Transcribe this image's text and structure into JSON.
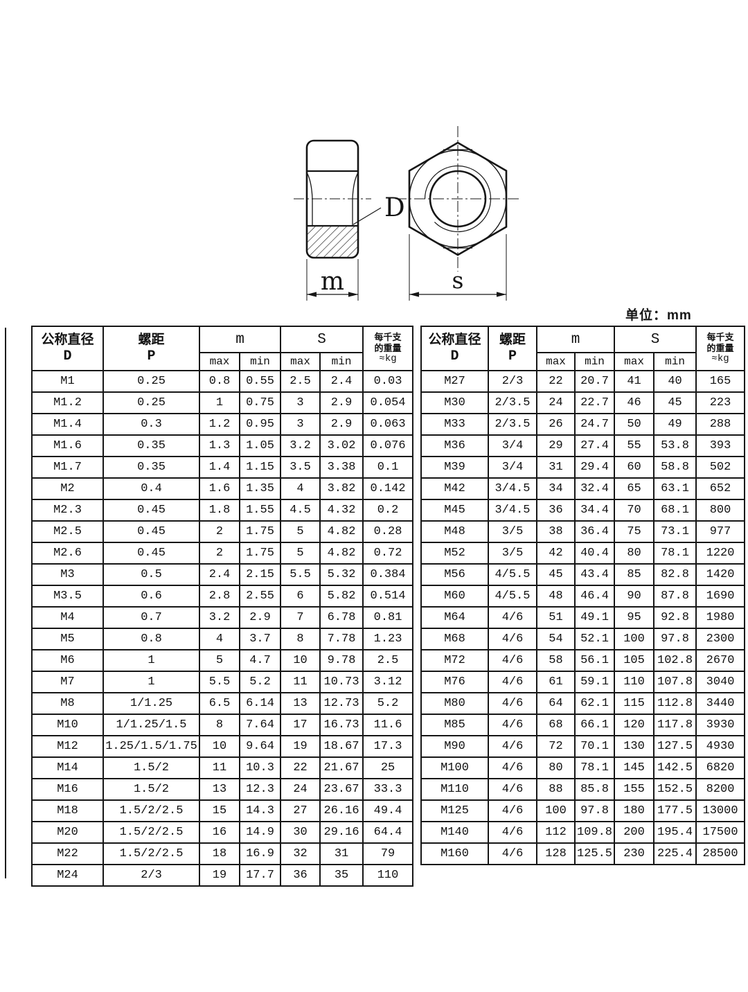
{
  "unit_label": "单位：mm",
  "drawing": {
    "bore_label": "D",
    "thickness_label": "m",
    "width_label": "s"
  },
  "table": {
    "header": {
      "diameter_line1": "公称直径",
      "diameter_line2": "D",
      "pitch_line1": "螺距",
      "pitch_line2": "P",
      "m_group": "m",
      "s_group": "S",
      "max": "max",
      "min": "min",
      "weight_line1": "每千支",
      "weight_line2": "的重量",
      "weight_line3": "≈kg"
    },
    "left_rows": [
      [
        "M1",
        "0.25",
        "0.8",
        "0.55",
        "2.5",
        "2.4",
        "0.03"
      ],
      [
        "M1.2",
        "0.25",
        "1",
        "0.75",
        "3",
        "2.9",
        "0.054"
      ],
      [
        "M1.4",
        "0.3",
        "1.2",
        "0.95",
        "3",
        "2.9",
        "0.063"
      ],
      [
        "M1.6",
        "0.35",
        "1.3",
        "1.05",
        "3.2",
        "3.02",
        "0.076"
      ],
      [
        "M1.7",
        "0.35",
        "1.4",
        "1.15",
        "3.5",
        "3.38",
        "0.1"
      ],
      [
        "M2",
        "0.4",
        "1.6",
        "1.35",
        "4",
        "3.82",
        "0.142"
      ],
      [
        "M2.3",
        "0.45",
        "1.8",
        "1.55",
        "4.5",
        "4.32",
        "0.2"
      ],
      [
        "M2.5",
        "0.45",
        "2",
        "1.75",
        "5",
        "4.82",
        "0.28"
      ],
      [
        "M2.6",
        "0.45",
        "2",
        "1.75",
        "5",
        "4.82",
        "0.72"
      ],
      [
        "M3",
        "0.5",
        "2.4",
        "2.15",
        "5.5",
        "5.32",
        "0.384"
      ],
      [
        "M3.5",
        "0.6",
        "2.8",
        "2.55",
        "6",
        "5.82",
        "0.514"
      ],
      [
        "M4",
        "0.7",
        "3.2",
        "2.9",
        "7",
        "6.78",
        "0.81"
      ],
      [
        "M5",
        "0.8",
        "4",
        "3.7",
        "8",
        "7.78",
        "1.23"
      ],
      [
        "M6",
        "1",
        "5",
        "4.7",
        "10",
        "9.78",
        "2.5"
      ],
      [
        "M7",
        "1",
        "5.5",
        "5.2",
        "11",
        "10.73",
        "3.12"
      ],
      [
        "M8",
        "1/1.25",
        "6.5",
        "6.14",
        "13",
        "12.73",
        "5.2"
      ],
      [
        "M10",
        "1/1.25/1.5",
        "8",
        "7.64",
        "17",
        "16.73",
        "11.6"
      ],
      [
        "M12",
        "1.25/1.5/1.75",
        "10",
        "9.64",
        "19",
        "18.67",
        "17.3"
      ],
      [
        "M14",
        "1.5/2",
        "11",
        "10.3",
        "22",
        "21.67",
        "25"
      ],
      [
        "M16",
        "1.5/2",
        "13",
        "12.3",
        "24",
        "23.67",
        "33.3"
      ],
      [
        "M18",
        "1.5/2/2.5",
        "15",
        "14.3",
        "27",
        "26.16",
        "49.4"
      ],
      [
        "M20",
        "1.5/2/2.5",
        "16",
        "14.9",
        "30",
        "29.16",
        "64.4"
      ],
      [
        "M22",
        "1.5/2/2.5",
        "18",
        "16.9",
        "32",
        "31",
        "79"
      ],
      [
        "M24",
        "2/3",
        "19",
        "17.7",
        "36",
        "35",
        "110"
      ]
    ],
    "right_rows": [
      [
        "M27",
        "2/3",
        "22",
        "20.7",
        "41",
        "40",
        "165"
      ],
      [
        "M30",
        "2/3.5",
        "24",
        "22.7",
        "46",
        "45",
        "223"
      ],
      [
        "M33",
        "2/3.5",
        "26",
        "24.7",
        "50",
        "49",
        "288"
      ],
      [
        "M36",
        "3/4",
        "29",
        "27.4",
        "55",
        "53.8",
        "393"
      ],
      [
        "M39",
        "3/4",
        "31",
        "29.4",
        "60",
        "58.8",
        "502"
      ],
      [
        "M42",
        "3/4.5",
        "34",
        "32.4",
        "65",
        "63.1",
        "652"
      ],
      [
        "M45",
        "3/4.5",
        "36",
        "34.4",
        "70",
        "68.1",
        "800"
      ],
      [
        "M48",
        "3/5",
        "38",
        "36.4",
        "75",
        "73.1",
        "977"
      ],
      [
        "M52",
        "3/5",
        "42",
        "40.4",
        "80",
        "78.1",
        "1220"
      ],
      [
        "M56",
        "4/5.5",
        "45",
        "43.4",
        "85",
        "82.8",
        "1420"
      ],
      [
        "M60",
        "4/5.5",
        "48",
        "46.4",
        "90",
        "87.8",
        "1690"
      ],
      [
        "M64",
        "4/6",
        "51",
        "49.1",
        "95",
        "92.8",
        "1980"
      ],
      [
        "M68",
        "4/6",
        "54",
        "52.1",
        "100",
        "97.8",
        "2300"
      ],
      [
        "M72",
        "4/6",
        "58",
        "56.1",
        "105",
        "102.8",
        "2670"
      ],
      [
        "M76",
        "4/6",
        "61",
        "59.1",
        "110",
        "107.8",
        "3040"
      ],
      [
        "M80",
        "4/6",
        "64",
        "62.1",
        "115",
        "112.8",
        "3440"
      ],
      [
        "M85",
        "4/6",
        "68",
        "66.1",
        "120",
        "117.8",
        "3930"
      ],
      [
        "M90",
        "4/6",
        "72",
        "70.1",
        "130",
        "127.5",
        "4930"
      ],
      [
        "M100",
        "4/6",
        "80",
        "78.1",
        "145",
        "142.5",
        "6820"
      ],
      [
        "M110",
        "4/6",
        "88",
        "85.8",
        "155",
        "152.5",
        "8200"
      ],
      [
        "M125",
        "4/6",
        "100",
        "97.8",
        "180",
        "177.5",
        "13000"
      ],
      [
        "M140",
        "4/6",
        "112",
        "109.8",
        "200",
        "195.4",
        "17500"
      ],
      [
        "M160",
        "4/6",
        "128",
        "125.5",
        "230",
        "225.4",
        "28500"
      ]
    ]
  }
}
